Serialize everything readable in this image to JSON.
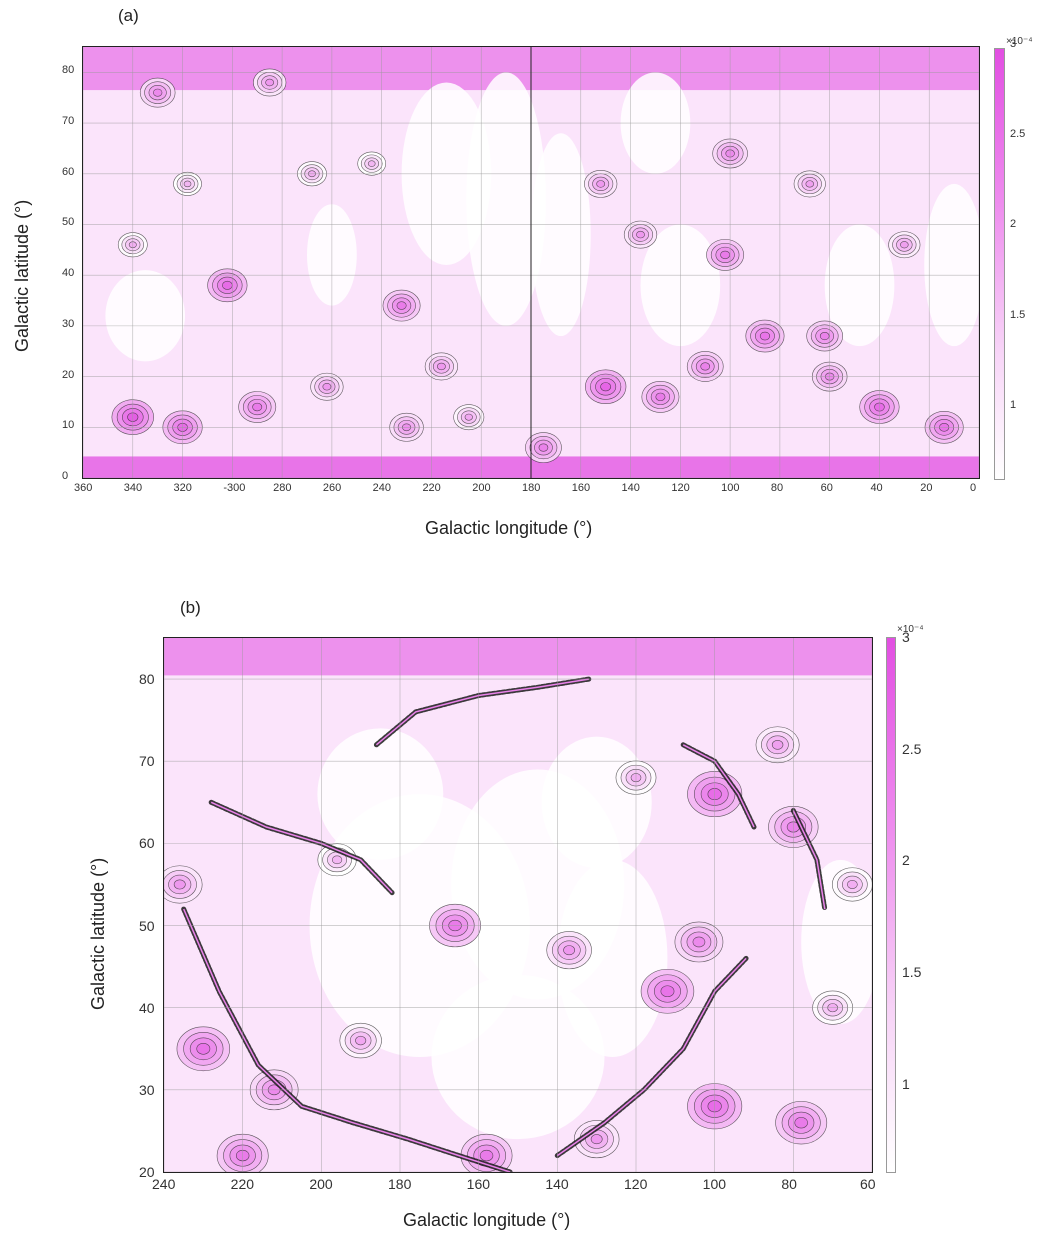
{
  "colors": {
    "low": "#ffffff",
    "mid": "#f3bcf3",
    "high": "#e24fe2",
    "contour": "#2a2a2a",
    "grid": "#9a9a9a"
  },
  "chart_data": [
    {
      "panel": "(a)",
      "type": "heatmap",
      "xlabel": "Galactic longitude (°)",
      "ylabel": "Galactic latitude (°)",
      "x_ticks": [
        "360",
        "340",
        "320",
        "-300",
        "280",
        "260",
        "240",
        "220",
        "200",
        "180",
        "160",
        "140",
        "120",
        "100",
        "80",
        "60",
        "40",
        "20",
        "0"
      ],
      "y_ticks": [
        "0",
        "10",
        "20",
        "30",
        "40",
        "50",
        "60",
        "70",
        "80"
      ],
      "xlim": [
        360,
        0
      ],
      "ylim": [
        0,
        85
      ],
      "grid": true,
      "colorbar": {
        "ticks": [
          "1",
          "1.5",
          "2",
          "2.5",
          "3"
        ],
        "exponent": "×10⁻⁴",
        "range": [
          0.6,
          3
        ]
      },
      "blobs": [
        {
          "x": 302,
          "y": 38,
          "v": 2.6
        },
        {
          "x": 232,
          "y": 34,
          "v": 2.4
        },
        {
          "x": 216,
          "y": 22,
          "v": 2.0
        },
        {
          "x": 340,
          "y": 12,
          "v": 2.8
        },
        {
          "x": 320,
          "y": 10,
          "v": 2.6
        },
        {
          "x": 290,
          "y": 14,
          "v": 2.4
        },
        {
          "x": 262,
          "y": 18,
          "v": 2.0
        },
        {
          "x": 230,
          "y": 10,
          "v": 2.1
        },
        {
          "x": 205,
          "y": 12,
          "v": 1.8
        },
        {
          "x": 150,
          "y": 18,
          "v": 2.7
        },
        {
          "x": 128,
          "y": 16,
          "v": 2.4
        },
        {
          "x": 110,
          "y": 22,
          "v": 2.3
        },
        {
          "x": 86,
          "y": 28,
          "v": 2.5
        },
        {
          "x": 102,
          "y": 44,
          "v": 2.4
        },
        {
          "x": 100,
          "y": 64,
          "v": 2.2
        },
        {
          "x": 62,
          "y": 28,
          "v": 2.3
        },
        {
          "x": 40,
          "y": 14,
          "v": 2.6
        },
        {
          "x": 14,
          "y": 10,
          "v": 2.5
        },
        {
          "x": 152,
          "y": 58,
          "v": 2.0
        },
        {
          "x": 136,
          "y": 48,
          "v": 2.0
        },
        {
          "x": 30,
          "y": 46,
          "v": 1.9
        },
        {
          "x": 68,
          "y": 58,
          "v": 1.9
        },
        {
          "x": 340,
          "y": 46,
          "v": 1.7
        },
        {
          "x": 318,
          "y": 58,
          "v": 1.6
        },
        {
          "x": 268,
          "y": 60,
          "v": 1.7
        },
        {
          "x": 244,
          "y": 62,
          "v": 1.6
        },
        {
          "x": 330,
          "y": 76,
          "v": 2.2
        },
        {
          "x": 285,
          "y": 78,
          "v": 2.0
        },
        {
          "x": 60,
          "y": 20,
          "v": 2.2
        },
        {
          "x": 175,
          "y": 6,
          "v": 2.3
        }
      ]
    },
    {
      "panel": "(b)",
      "type": "heatmap",
      "xlabel": "Galactic longitude (°)",
      "ylabel": "Galactic latitude (°)",
      "x_ticks": [
        "240",
        "220",
        "200",
        "180",
        "160",
        "140",
        "120",
        "100",
        "80",
        "60"
      ],
      "y_ticks": [
        "20",
        "30",
        "40",
        "50",
        "60",
        "70",
        "80"
      ],
      "xlim": [
        240,
        60
      ],
      "ylim": [
        20,
        85
      ],
      "grid": true,
      "colorbar": {
        "ticks": [
          "1",
          "1.5",
          "2",
          "2.5",
          "3"
        ],
        "exponent": "×10⁻⁴",
        "range": [
          0.6,
          3
        ]
      },
      "blobs": [
        {
          "x": 230,
          "y": 35,
          "v": 2.5
        },
        {
          "x": 212,
          "y": 30,
          "v": 2.2
        },
        {
          "x": 220,
          "y": 22,
          "v": 2.4
        },
        {
          "x": 236,
          "y": 55,
          "v": 2.0
        },
        {
          "x": 166,
          "y": 50,
          "v": 2.4
        },
        {
          "x": 137,
          "y": 47,
          "v": 2.0
        },
        {
          "x": 112,
          "y": 42,
          "v": 2.5
        },
        {
          "x": 104,
          "y": 48,
          "v": 2.2
        },
        {
          "x": 100,
          "y": 66,
          "v": 2.6
        },
        {
          "x": 80,
          "y": 62,
          "v": 2.3
        },
        {
          "x": 78,
          "y": 26,
          "v": 2.4
        },
        {
          "x": 100,
          "y": 28,
          "v": 2.6
        },
        {
          "x": 158,
          "y": 22,
          "v": 2.4
        },
        {
          "x": 130,
          "y": 24,
          "v": 2.0
        },
        {
          "x": 70,
          "y": 40,
          "v": 1.7
        },
        {
          "x": 190,
          "y": 36,
          "v": 1.8
        },
        {
          "x": 120,
          "y": 68,
          "v": 1.7
        },
        {
          "x": 84,
          "y": 72,
          "v": 1.9
        },
        {
          "x": 196,
          "y": 58,
          "v": 1.6
        },
        {
          "x": 65,
          "y": 55,
          "v": 1.7
        }
      ],
      "filaments": [
        [
          [
            235,
            52
          ],
          [
            226,
            42
          ],
          [
            216,
            33
          ],
          [
            205,
            28
          ],
          [
            192,
            26
          ],
          [
            178,
            24
          ],
          [
            165,
            22
          ],
          [
            152,
            20
          ]
        ],
        [
          [
            228,
            65
          ],
          [
            214,
            62
          ],
          [
            200,
            60
          ],
          [
            190,
            58
          ],
          [
            182,
            54
          ]
        ],
        [
          [
            186,
            72
          ],
          [
            176,
            76
          ],
          [
            160,
            78
          ],
          [
            145,
            79
          ],
          [
            132,
            80
          ]
        ],
        [
          [
            140,
            22
          ],
          [
            128,
            26
          ],
          [
            118,
            30
          ],
          [
            108,
            35
          ],
          [
            100,
            42
          ],
          [
            92,
            46
          ]
        ],
        [
          [
            108,
            72
          ],
          [
            100,
            70
          ],
          [
            94,
            66
          ],
          [
            90,
            62
          ]
        ],
        [
          [
            80,
            64
          ],
          [
            74,
            58
          ],
          [
            72,
            52
          ]
        ]
      ]
    }
  ]
}
